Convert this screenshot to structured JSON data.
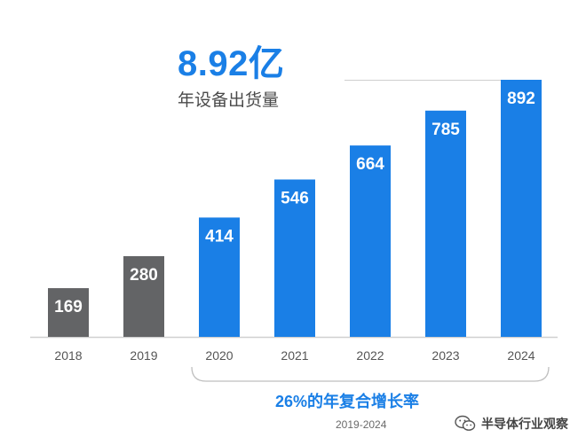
{
  "headline": {
    "value": "8.92亿",
    "subtitle": "年设备出货量"
  },
  "cagr": {
    "label": "26%的年复合增长率",
    "range": "2019-2024"
  },
  "watermark": {
    "text": "半导体行业观察",
    "icon": "wechat-icon"
  },
  "colors": {
    "actual": "#636466",
    "forecast": "#1a7fe6",
    "baseline": "#cfcfcf",
    "bracket": "#bfbfbf",
    "label_text": "#ffffff",
    "tick_text": "#555555"
  },
  "chart_data": {
    "type": "bar",
    "title": "8.92亿",
    "subtitle": "年设备出货量",
    "xlabel": "",
    "ylabel": "",
    "categories": [
      "2018",
      "2019",
      "2020",
      "2021",
      "2022",
      "2023",
      "2024"
    ],
    "values": [
      169,
      280,
      414,
      546,
      664,
      785,
      892
    ],
    "bar_colors": [
      "#636466",
      "#636466",
      "#1a7fe6",
      "#1a7fe6",
      "#1a7fe6",
      "#1a7fe6",
      "#1a7fe6"
    ],
    "data_labels": [
      "169",
      "280",
      "414",
      "546",
      "664",
      "785",
      "892"
    ],
    "ylim": [
      0,
      892
    ],
    "grid": false,
    "legend": "none",
    "annotations": [
      {
        "text": "26%的年复合增长率",
        "span": [
          "2020",
          "2024"
        ]
      },
      {
        "text": "2019-2024",
        "span": [
          "2020",
          "2024"
        ]
      }
    ]
  }
}
